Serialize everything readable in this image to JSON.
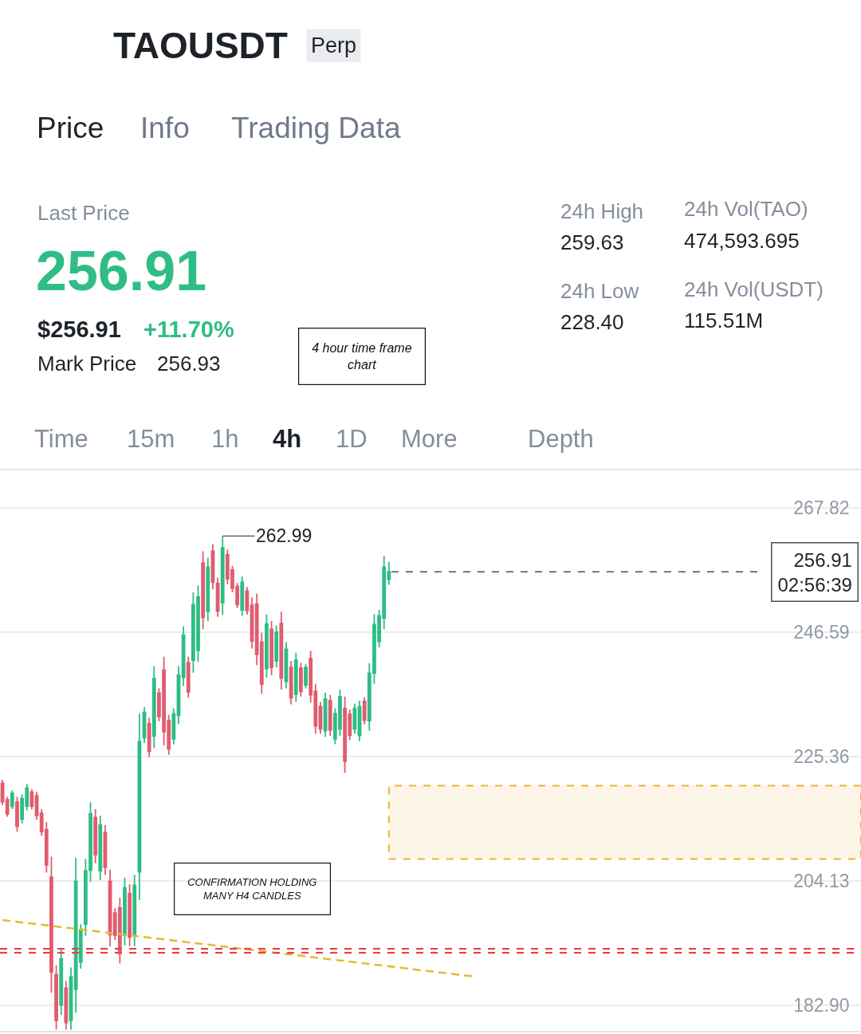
{
  "chart_data": {
    "type": "candlestick",
    "title": "TAOUSDT",
    "annotations": [
      "Perp",
      "Price",
      "Info",
      "Trading Data",
      "Last Price",
      "256.91",
      "$256.91",
      "+11.70%",
      "Mark Price",
      "256.93",
      "24h High",
      "259.63",
      "24h Vol(TAO)",
      "474,593.695",
      "24h Low",
      "228.40",
      "24h Vol(USDT)",
      "115.51M",
      "4 hour time frame chart",
      "Time",
      "15m",
      "1h",
      "4h",
      "1D",
      "More",
      "Depth",
      "CONFIRMATION HOLDING MANY H4 CANDLES",
      "262.99"
    ],
    "categories": [
      null,
      null,
      null,
      null,
      null,
      null,
      null,
      null,
      null,
      null,
      null,
      null,
      null,
      null,
      null,
      null,
      null,
      null,
      null,
      null,
      null,
      null,
      null,
      null,
      null,
      null,
      null,
      null,
      null,
      null,
      null,
      null,
      null,
      null,
      null,
      null,
      null,
      null,
      null,
      null,
      null,
      null,
      null,
      null,
      null,
      null,
      null,
      null,
      null,
      null,
      null,
      null,
      null,
      null,
      null,
      null,
      null,
      null,
      null,
      null,
      null,
      null,
      null,
      null,
      null,
      null,
      null,
      null,
      null,
      null,
      null,
      null,
      null,
      null,
      null,
      null,
      null,
      null,
      null,
      null,
      null,
      null,
      null,
      null,
      null,
      null,
      null,
      null,
      null,
      null,
      null,
      null,
      null,
      null,
      null,
      null,
      null,
      null,
      null,
      null,
      null,
      null,
      null,
      null,
      null,
      null,
      null,
      null,
      null,
      null,
      null,
      null,
      null,
      null,
      null,
      null,
      null,
      null,
      null,
      null,
      null,
      null,
      null,
      null,
      null,
      null,
      null,
      null,
      null,
      null,
      null,
      null,
      null,
      null,
      null,
      null,
      null,
      null,
      null,
      null,
      null,
      null,
      null,
      null,
      null,
      null,
      null,
      null,
      null,
      null,
      null,
      null,
      null,
      null,
      null,
      null,
      null,
      null,
      null,
      null,
      null,
      null,
      null,
      null,
      null,
      null,
      null,
      null,
      null,
      null,
      null,
      null,
      null,
      null,
      null,
      null
    ],
    "ohlc": [
      [
        220.8,
        221.4,
        217.1,
        217.7
      ],
      [
        218.0,
        218.5,
        215.1,
        215.6
      ],
      [
        216.9,
        219.6,
        216.4,
        219.1
      ],
      [
        217.6,
        218.5,
        212.6,
        213.5
      ],
      [
        214.7,
        218.9,
        214.0,
        218.2
      ],
      [
        216.9,
        220.7,
        216.2,
        220.0
      ],
      [
        219.3,
        219.8,
        216.4,
        216.9
      ],
      [
        218.7,
        219.4,
        214.6,
        215.3
      ],
      [
        215.7,
        216.4,
        211.9,
        212.6
      ],
      [
        212.9,
        214.2,
        205.6,
        206.9
      ],
      [
        204.8,
        208.3,
        185.1,
        188.6
      ],
      [
        188.2,
        189.8,
        178.8,
        180.4
      ],
      [
        183.0,
        192.6,
        181.3,
        190.9
      ],
      [
        185.9,
        187.1,
        178.8,
        180.0
      ],
      [
        180.4,
        189.4,
        178.8,
        187.8
      ],
      [
        185.7,
        208.1,
        181.7,
        204.1
      ],
      [
        190.3,
        196.8,
        189.2,
        195.7
      ],
      [
        196.8,
        207.9,
        194.8,
        205.9
      ],
      [
        206.0,
        217.6,
        204.0,
        215.6
      ],
      [
        215.0,
        216.4,
        207.2,
        208.6
      ],
      [
        205.9,
        215.3,
        204.3,
        213.7
      ],
      [
        212.4,
        213.7,
        205.2,
        206.5
      ],
      [
        204.1,
        206.1,
        193.0,
        195.0
      ],
      [
        198.7,
        199.5,
        194.1,
        194.9
      ],
      [
        199.6,
        201.3,
        190.1,
        191.8
      ],
      [
        194.9,
        204.7,
        193.2,
        203.0
      ],
      [
        202.0,
        203.6,
        193.0,
        194.6
      ],
      [
        194.8,
        205.2,
        193.0,
        203.4
      ],
      [
        205.7,
        232.7,
        200.9,
        227.9
      ],
      [
        228.6,
        233.8,
        227.7,
        232.9
      ],
      [
        231.0,
        232.0,
        225.3,
        226.3
      ],
      [
        228.9,
        240.8,
        226.8,
        238.7
      ],
      [
        236.2,
        237.0,
        231.4,
        232.2
      ],
      [
        240.1,
        242.4,
        227.3,
        229.6
      ],
      [
        231.5,
        232.5,
        225.7,
        226.7
      ],
      [
        228.4,
        233.6,
        227.5,
        232.7
      ],
      [
        232.4,
        240.8,
        230.9,
        239.3
      ],
      [
        238.9,
        247.6,
        237.4,
        246.1
      ],
      [
        241.4,
        242.4,
        235.4,
        236.4
      ],
      [
        241.8,
        253.4,
        239.7,
        251.3
      ],
      [
        243.5,
        254.6,
        241.5,
        252.6
      ],
      [
        258.4,
        260.4,
        247.1,
        249.1
      ],
      [
        250.1,
        259.3,
        248.5,
        257.7
      ],
      [
        260.4,
        261.6,
        253.9,
        255.1
      ],
      [
        254.9,
        255.9,
        249.2,
        250.2
      ],
      [
        251.6,
        262.99,
        249.6,
        261.0
      ],
      [
        259.8,
        260.7,
        254.8,
        255.7
      ],
      [
        257.2,
        257.9,
        253.4,
        254.1
      ],
      [
        254.4,
        255.0,
        250.7,
        251.3
      ],
      [
        250.4,
        256.1,
        249.4,
        255.1
      ],
      [
        253.6,
        254.3,
        249.6,
        250.3
      ],
      [
        251.2,
        252.5,
        243.8,
        245.1
      ],
      [
        251.4,
        253.2,
        241.0,
        242.8
      ],
      [
        244.9,
        246.5,
        236.1,
        237.7
      ],
      [
        240.4,
        249.6,
        238.8,
        248.0
      ],
      [
        247.1,
        248.5,
        239.2,
        240.6
      ],
      [
        241.7,
        247.7,
        240.6,
        246.6
      ],
      [
        248.1,
        250.1,
        236.8,
        238.8
      ],
      [
        238.2,
        244.9,
        237.0,
        243.7
      ],
      [
        240.6,
        241.7,
        234.3,
        235.4
      ],
      [
        236.0,
        243.1,
        234.7,
        241.8
      ],
      [
        240.5,
        241.4,
        235.6,
        236.5
      ],
      [
        237.6,
        241.2,
        237.0,
        240.6
      ],
      [
        242.1,
        243.4,
        234.6,
        235.9
      ],
      [
        236.5,
        237.8,
        229.3,
        230.6
      ],
      [
        233.9,
        234.7,
        229.3,
        230.1
      ],
      [
        229.8,
        236.3,
        228.7,
        235.2
      ],
      [
        234.9,
        235.9,
        228.9,
        229.9
      ],
      [
        228.4,
        233.6,
        227.5,
        232.7
      ],
      [
        230.1,
        236.8,
        228.9,
        235.6
      ],
      [
        233.6,
        235.6,
        222.6,
        224.6
      ],
      [
        232.6,
        233.4,
        228.2,
        229.0
      ],
      [
        230.1,
        234.4,
        229.3,
        233.6
      ],
      [
        229.0,
        234.9,
        228.0,
        233.9
      ],
      [
        234.8,
        235.5,
        230.9,
        231.6
      ],
      [
        231.5,
        241.3,
        229.8,
        239.6
      ],
      [
        239.6,
        249.7,
        237.8,
        247.9
      ],
      [
        245.0,
        250.4,
        244.0,
        249.4
      ],
      [
        249.0,
        259.63,
        247.1,
        257.7
      ],
      [
        255.6,
        258.6,
        254.7,
        256.91
      ],
      null,
      null,
      null,
      null,
      null,
      null,
      null,
      null,
      null,
      null,
      null,
      null,
      null,
      null,
      null,
      null,
      null,
      null,
      null,
      null,
      null,
      null,
      null,
      null,
      null,
      null,
      null,
      null,
      null,
      null,
      null,
      null,
      null,
      null,
      null,
      null,
      null,
      null,
      null,
      null,
      null,
      null,
      null,
      null,
      null,
      null,
      null,
      null,
      null,
      null,
      null,
      null,
      null,
      null,
      null,
      null,
      null,
      null,
      null,
      null,
      null,
      null,
      null,
      null,
      null,
      null,
      null,
      null,
      null,
      null,
      null,
      null,
      null,
      null,
      null,
      null,
      null,
      null,
      null,
      null,
      null,
      null,
      null,
      null,
      null,
      null,
      null,
      null,
      null,
      null,
      null,
      null,
      null,
      null,
      null,
      null
    ],
    "colors": [
      "#e05d6f",
      "#e05d6f",
      "#2ebd85",
      "#e05d6f",
      "#2ebd85",
      "#2ebd85",
      "#e05d6f",
      "#e05d6f",
      "#e05d6f",
      "#e05d6f",
      "#e05d6f",
      "#e05d6f",
      "#2ebd85",
      "#e05d6f",
      "#2ebd85",
      "#2ebd85",
      "#2ebd85",
      "#2ebd85",
      "#2ebd85",
      "#e05d6f",
      "#2ebd85",
      "#e05d6f",
      "#e05d6f",
      "#e05d6f",
      "#e05d6f",
      "#2ebd85",
      "#e05d6f",
      "#2ebd85",
      "#2ebd85",
      "#2ebd85",
      "#e05d6f",
      "#2ebd85",
      "#e05d6f",
      "#e05d6f",
      "#e05d6f",
      "#2ebd85",
      "#2ebd85",
      "#2ebd85",
      "#e05d6f",
      "#2ebd85",
      "#2ebd85",
      "#e05d6f",
      "#2ebd85",
      "#e05d6f",
      "#e05d6f",
      "#2ebd85",
      "#e05d6f",
      "#e05d6f",
      "#e05d6f",
      "#2ebd85",
      "#e05d6f",
      "#e05d6f",
      "#e05d6f",
      "#e05d6f",
      "#2ebd85",
      "#e05d6f",
      "#2ebd85",
      "#e05d6f",
      "#2ebd85",
      "#e05d6f",
      "#2ebd85",
      "#e05d6f",
      "#2ebd85",
      "#e05d6f",
      "#e05d6f",
      "#e05d6f",
      "#2ebd85",
      "#e05d6f",
      "#2ebd85",
      "#2ebd85",
      "#e05d6f",
      "#e05d6f",
      "#2ebd85",
      "#2ebd85",
      "#e05d6f",
      "#2ebd85",
      "#2ebd85",
      "#2ebd85",
      "#2ebd85",
      "#2ebd85",
      null,
      null,
      null,
      null,
      null,
      null,
      null,
      null,
      null,
      null,
      null,
      null,
      null,
      null,
      null,
      null,
      null,
      null,
      null,
      null,
      null,
      null,
      null,
      null,
      null,
      null,
      null,
      null,
      null,
      null,
      null,
      null,
      null,
      null,
      null,
      null,
      null,
      null,
      null,
      null,
      null,
      null,
      null,
      null,
      null,
      null,
      null,
      null,
      null,
      null,
      null,
      null,
      null,
      null,
      null,
      null,
      null,
      null,
      null,
      null,
      null,
      null,
      null,
      null,
      null,
      null,
      null,
      null,
      null,
      null,
      null,
      null,
      null,
      null,
      null,
      null,
      null,
      null,
      null,
      null,
      null,
      null,
      null,
      null,
      null,
      null,
      null,
      null,
      null,
      null,
      null,
      null,
      null,
      null,
      null,
      null
    ],
    "series": [
      {
        "type": "line",
        "color": "#e8b931",
        "line_style": "dashed",
        "values": [
          197.5,
          null,
          null,
          null,
          null,
          null,
          null,
          null,
          null,
          null,
          null,
          null,
          null,
          null,
          null,
          null,
          null,
          null,
          null,
          null,
          null,
          null,
          null,
          null,
          null,
          null,
          null,
          null,
          null,
          null,
          null,
          null,
          null,
          null,
          null,
          null,
          null,
          null,
          null,
          null,
          null,
          null,
          null,
          null,
          null,
          null,
          null,
          null,
          null,
          null,
          null,
          null,
          null,
          null,
          null,
          null,
          null,
          null,
          null,
          null,
          null,
          null,
          null,
          null,
          null,
          null,
          null,
          null,
          null,
          null,
          null,
          null,
          null,
          null,
          null,
          null,
          null,
          null,
          null,
          null,
          null,
          null,
          null,
          null,
          null,
          null,
          null,
          null,
          null,
          null,
          null,
          null,
          null,
          null,
          null,
          null,
          187.9,
          null,
          null,
          null,
          null,
          null,
          null,
          null,
          null,
          null,
          null,
          null,
          null,
          null,
          null,
          null,
          null,
          null,
          null,
          null,
          null,
          null,
          null,
          null,
          null,
          null,
          null,
          null,
          null,
          null,
          null,
          null,
          null,
          null,
          null,
          null,
          null,
          null,
          null,
          null,
          null,
          null,
          null,
          null,
          null,
          null,
          null,
          null,
          null,
          null,
          null,
          null,
          null,
          null,
          null,
          null,
          null,
          null,
          null,
          null,
          null,
          null,
          null,
          null,
          null,
          null,
          null,
          null,
          null,
          null,
          null,
          null,
          null,
          null,
          null,
          null,
          null,
          null,
          null,
          null
        ]
      }
    ],
    "ylim": [
      178.6,
      274.2
    ],
    "yticks": [
      267.82,
      246.59,
      225.36,
      204.13,
      {
        "value": 182.9,
        "label": "182.90"
      }
    ],
    "tick_labels": "y",
    "grid": "y",
    "ref_lines": [
      {
        "axis": "y",
        "value": 256.91,
        "label": "256.91\n02:56:39",
        "color": "#474d57",
        "line_style": "dashed"
      },
      {
        "axis": "y",
        "value": 192.6,
        "color": "#e0474c",
        "line_style": "dashed"
      },
      {
        "axis": "y",
        "value": 191.9,
        "color": "#e0474c",
        "line_style": "dashed"
      }
    ],
    "bands": [
      {
        "axis": "y",
        "from": 207.9,
        "to": 220.4,
        "color": "#eeb03c"
      }
    ]
  }
}
